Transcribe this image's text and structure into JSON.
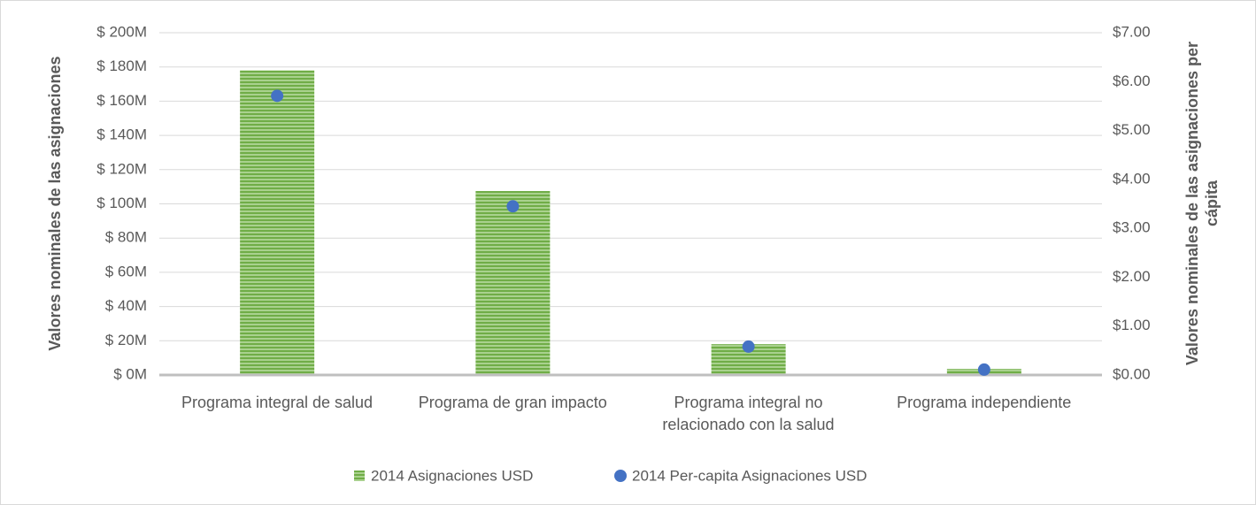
{
  "chart_data": {
    "type": "bar_dot",
    "categories": [
      "Programa integral de salud",
      "Programa de gran impacto",
      "Programa integral no relacionado con la salud",
      "Programa independiente"
    ],
    "ylabel": "Valores nominales de las asignaciones",
    "y2label": "Valores  nominales de las asignaciones per cápita",
    "series": [
      {
        "name": "2014 Asignaciones USD",
        "color": "#70ad47",
        "values": [
          178,
          107.5,
          18,
          3.5
        ]
      },
      {
        "name": "2014 Per-capita Asignaciones USD",
        "color": "#4472c4",
        "axis": "y2",
        "values": [
          5.71,
          3.45,
          0.58,
          0.11
        ]
      }
    ],
    "ylim": [
      0,
      200
    ],
    "yticks": [
      {
        "value": 0,
        "label": "$ 0M"
      },
      {
        "value": 20,
        "label": "$ 20M"
      },
      {
        "value": 40,
        "label": "$ 40M"
      },
      {
        "value": 60,
        "label": "$ 60M"
      },
      {
        "value": 80,
        "label": "$ 80M"
      },
      {
        "value": 100,
        "label": "$ 100M"
      },
      {
        "value": 120,
        "label": "$ 120M"
      },
      {
        "value": 140,
        "label": "$ 140M"
      },
      {
        "value": 160,
        "label": "$ 160M"
      },
      {
        "value": 180,
        "label": "$ 180M"
      },
      {
        "value": 200,
        "label": "$ 200M"
      }
    ],
    "y2lim": [
      0,
      7
    ],
    "y2ticks": [
      {
        "value": 0,
        "label": "$0.00"
      },
      {
        "value": 1,
        "label": "$1.00"
      },
      {
        "value": 2,
        "label": "$2.00"
      },
      {
        "value": 3,
        "label": "$3.00"
      },
      {
        "value": 4,
        "label": "$4.00"
      },
      {
        "value": 5,
        "label": "$5.00"
      },
      {
        "value": 6,
        "label": "$6.00"
      },
      {
        "value": 7,
        "label": "$7.00"
      }
    ],
    "grid": true,
    "legend": "bottom"
  }
}
